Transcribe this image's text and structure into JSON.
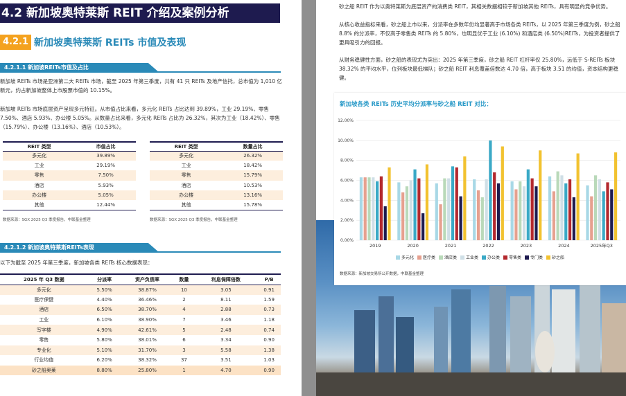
{
  "left": {
    "main_heading": "4.2 新加坡奥特莱斯 REIT 介绍及案例分析",
    "section_number": "4.2.1",
    "section_title": "新加坡奥特莱斯 REITs 市值及表现",
    "sub1_title": "4.2.1.1  新加坡REITs市值及占比",
    "para1": "新加坡 REITs 市场是亚洲第二大 REITs 市场，截至 2025 年第三季度，共有 41 只 REITs 及地产信托，总市值为 1,010 亿新元，约占新加坡整体上市股票市值的 10.15%。",
    "para2": "新加坡 REITs 市场底层资产呈现多元特征。从市值占比来看，多元化 REITs 占比达到 39.89%，工业 29.19%、零售 7.50%、酒店 5.93%、办公楼 5.05%。从数量占比来看，多元化 REITs 占比为 26.32%，其次为工业（18.42%）、零售（15.79%）、办公楼（13.16%）、酒店（10.53%）。",
    "table_mcap": {
      "headers": [
        "REIT 类型",
        "市值占比"
      ],
      "rows": [
        [
          "多元化",
          "39.89%"
        ],
        [
          "工业",
          "29.19%"
        ],
        [
          "零售",
          "7.50%"
        ],
        [
          "酒店",
          "5.93%"
        ],
        [
          "办公楼",
          "5.05%"
        ],
        [
          "其他",
          "12.44%"
        ]
      ]
    },
    "table_count": {
      "headers": [
        "REIT 类型",
        "数量占比"
      ],
      "rows": [
        [
          "多元化",
          "26.32%"
        ],
        [
          "工业",
          "18.42%"
        ],
        [
          "零售",
          "15.79%"
        ],
        [
          "酒店",
          "10.53%"
        ],
        [
          "办公楼",
          "13.16%"
        ],
        [
          "其他",
          "15.78%"
        ]
      ]
    },
    "source_tables": "数据来源：SGX 2025 Q3 季度报告，中联基金整理",
    "sub2_title": "4.2.1.2  新加坡奥特莱斯REITs表现",
    "para3": "以下为截至 2025 年第三季度，新加坡各类 REITs 核心数据表现：",
    "table_perf": {
      "headers": [
        "2025 年 Q3 数据",
        "分派率",
        "资产负债率",
        "数量",
        "利息保障倍数",
        "P/B"
      ],
      "rows": [
        [
          "多元化",
          "5.50%",
          "38.87%",
          "10",
          "3.05",
          "0.91"
        ],
        [
          "医疗保健",
          "4.40%",
          "36.46%",
          "2",
          "8.11",
          "1.59"
        ],
        [
          "酒店",
          "6.50%",
          "38.70%",
          "4",
          "2.88",
          "0.73"
        ],
        [
          "工业",
          "6.10%",
          "38.90%",
          "7",
          "3.46",
          "1.18"
        ],
        [
          "写字楼",
          "4.90%",
          "42.61%",
          "5",
          "2.48",
          "0.74"
        ],
        [
          "零售",
          "5.80%",
          "38.01%",
          "6",
          "3.34",
          "0.90"
        ],
        [
          "专业化",
          "5.10%",
          "31.70%",
          "3",
          "5.58",
          "1.38"
        ],
        [
          "行业均值",
          "6.20%",
          "38.32%",
          "37",
          "3.51",
          "1.03"
        ],
        [
          "砂之船奥莱",
          "8.80%",
          "25.80%",
          "1",
          "4.70",
          "0.90"
        ]
      ]
    }
  },
  "right": {
    "para1": "砂之船 REIT 作为以奥特莱斯为底层资产的消费类 REIT，其相关数据相较于新加坡其他 REITs，具有明显的竞争优势。",
    "para2": "从核心收益指标来看，砂之船上市以来，分派率在多数年份均显著高于市场各类 REITs，以 2025 年第三季度为例，砂之船 8.8% 的分派率，不仅高于零售类 REITs 的 5.80%，也明显优于工业 (6.10%) 和酒店类 (6.50%)REITs，为投资者提供了更具吸引力的回报。",
    "para3": "从财务稳健性方面，砂之船的表现尤为突出：2025 年第三季度，砂之船 REIT 杠杆率仅 25.80%，远低于 S-REITs 板块 38.32% 的平均水平，位列板块最低梯队；砂之船 REIT 利息覆盖倍数达 4.70 倍，高于板块 3.51 的均值，资本结构更稳健。",
    "chart_title": "新加坡各类 REITs 历史平均分派率与砂之船 REIT 对比：",
    "chart_source": "数据来源：新加坡交易所公开数据，中联基金整理"
  },
  "colors": {
    "navy": "#1e1b4f",
    "accent_blue": "#2a8ab8",
    "orange": "#f4a21f",
    "row_tint": "#fdeedd"
  },
  "chart_data": {
    "type": "bar",
    "title": "新加坡各类 REITs 历史平均分派率与砂之船 REIT 对比：",
    "categories": [
      "2019",
      "2020",
      "2021",
      "2022",
      "2023",
      "2024",
      "2025年Q3"
    ],
    "yticks": [
      "0.00%",
      "2.00%",
      "4.00%",
      "6.00%",
      "8.00%",
      "10.00%",
      "12.00%"
    ],
    "ylim": [
      0,
      12
    ],
    "grid": true,
    "legend_position": "bottom",
    "series": [
      {
        "name": "多元化",
        "color": "#a8d8e6",
        "values": [
          6.3,
          5.8,
          5.7,
          6.1,
          5.9,
          6.4,
          5.5
        ]
      },
      {
        "name": "医疗类",
        "color": "#e6a08f",
        "values": [
          6.3,
          4.8,
          3.6,
          5.0,
          5.1,
          4.9,
          4.4
        ]
      },
      {
        "name": "酒店类",
        "color": "#b9d9b9",
        "values": [
          6.3,
          5.4,
          6.2,
          4.3,
          5.9,
          6.9,
          6.5
        ]
      },
      {
        "name": "工业类",
        "color": "#cfdfe6",
        "values": [
          6.3,
          6.0,
          6.2,
          6.1,
          5.4,
          6.5,
          6.1
        ]
      },
      {
        "name": "办公类",
        "color": "#3aa9c6",
        "values": [
          5.9,
          7.1,
          7.4,
          10.0,
          7.1,
          5.7,
          4.9
        ]
      },
      {
        "name": "零售类",
        "color": "#b3282d",
        "values": [
          6.4,
          6.2,
          7.3,
          6.8,
          6.2,
          6.1,
          5.8
        ]
      },
      {
        "name": "专门类",
        "color": "#1e1b4f",
        "values": [
          3.4,
          2.7,
          4.4,
          5.7,
          5.4,
          4.3,
          5.1
        ]
      },
      {
        "name": "砂之船",
        "color": "#f2c230",
        "values": [
          7.3,
          7.6,
          8.4,
          9.4,
          9.0,
          8.7,
          8.8
        ]
      }
    ]
  }
}
